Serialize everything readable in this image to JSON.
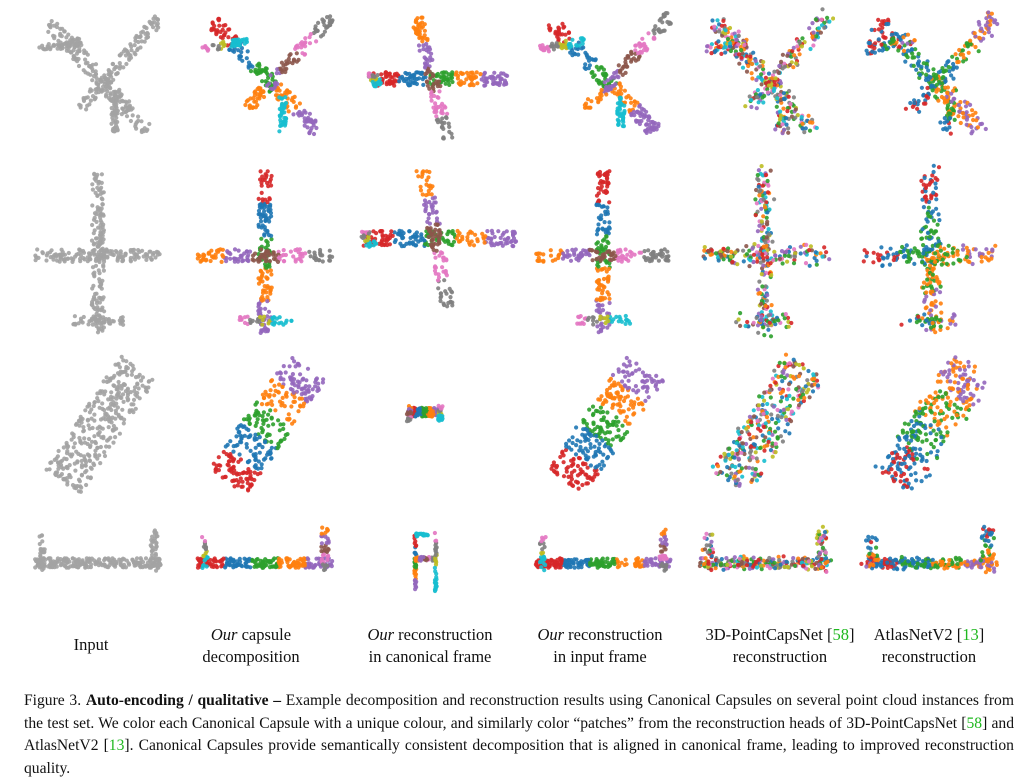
{
  "colors": {
    "input_gray": "#a3a3a3",
    "recon_gray": "#8a8a8a",
    "cite_green": "#1fb81f",
    "palette": [
      "#d62728",
      "#1f77b4",
      "#2ca02c",
      "#ff7f0e",
      "#9467bd",
      "#8c564b",
      "#e377c2",
      "#7f7f7f",
      "#bcbd22",
      "#17becf"
    ]
  },
  "rows": [
    {
      "shape": "airplane-diagonal",
      "cells": [
        "input",
        "capsule",
        "canonical",
        "input-frame",
        "pointcaps",
        "atlasnet"
      ]
    },
    {
      "shape": "airplane-topdown",
      "cells": [
        "input",
        "capsule",
        "canonical",
        "input-frame",
        "pointcaps",
        "atlasnet"
      ]
    },
    {
      "shape": "box-tilted",
      "cells": [
        "input",
        "capsule",
        "canonical",
        "input-frame",
        "pointcaps",
        "atlasnet"
      ]
    },
    {
      "shape": "chair-side",
      "cells": [
        "input",
        "capsule",
        "canonical",
        "input-frame",
        "pointcaps",
        "atlasnet"
      ]
    }
  ],
  "labels": {
    "input": "Input",
    "capsule_italic": "Our",
    "capsule_rest": " capsule",
    "capsule_line2": "decomposition",
    "canonical_italic": "Our",
    "canonical_rest": " reconstruction",
    "canonical_line2": "in canonical frame",
    "inputframe_italic": "Our",
    "inputframe_rest": " reconstruction",
    "inputframe_line2": "in input frame",
    "pointcaps_name": "3D-PointCapsNet [",
    "pointcaps_ref": "58",
    "pointcaps_close": "]",
    "pointcaps_line2": "reconstruction",
    "atlas_name": "AtlasNetV2 [",
    "atlas_ref": "13",
    "atlas_close": "]",
    "atlas_line2": "reconstruction"
  },
  "caption": {
    "prefix": "Figure 3.  ",
    "bold": "Auto-encoding / qualitative –",
    "t1": "  Example decomposition and reconstruction results using Canonical Capsules on several point cloud instances from the test set.  We color each Canonical Capsule with a unique colour, and similarly color “patches” from the reconstruction heads of 3D-PointCapsNet [",
    "ref1": "58",
    "t2": "] and AtlasNetV2 [",
    "ref2": "13",
    "t3": "]. Canonical Capsules provide semantically consistent decomposition that is aligned in canonical frame, leading to improved reconstruction quality."
  }
}
